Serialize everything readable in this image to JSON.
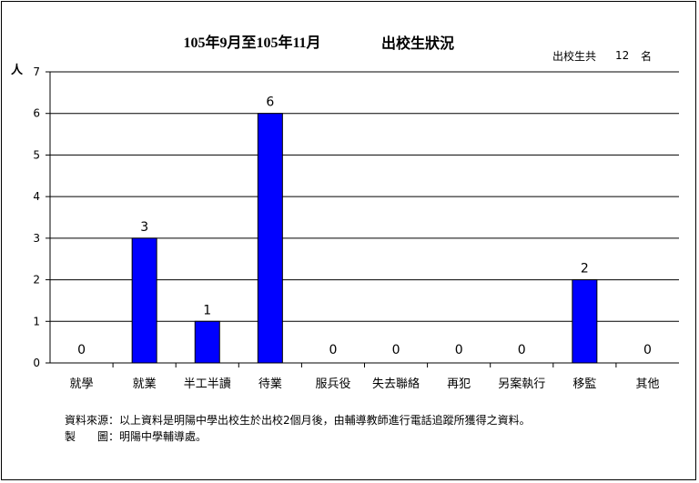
{
  "chart_data": {
    "type": "bar",
    "title_period": "105年9月至105年11月",
    "title_main": "出校生狀況",
    "total_prefix": "出校生共",
    "total_value": "12",
    "total_suffix": "名",
    "ylabel": "人",
    "ylim": [
      0,
      7
    ],
    "yticks": [
      0,
      1,
      2,
      3,
      4,
      5,
      6,
      7
    ],
    "categories": [
      "就學",
      "就業",
      "半工半讀",
      "待業",
      "服兵役",
      "失去聯絡",
      "再犯",
      "另案執行",
      "移監",
      "其他"
    ],
    "values": [
      0,
      3,
      1,
      6,
      0,
      0,
      0,
      0,
      2,
      0
    ],
    "bar_color": "#0000ff",
    "grid": true
  },
  "notes": {
    "source": "資料來源：以上資料是明陽中學出校生於出校2個月後，由輔導教師進行電話追蹤所獲得之資料。",
    "producer": "製　　圖：明陽中學輔導處。"
  }
}
